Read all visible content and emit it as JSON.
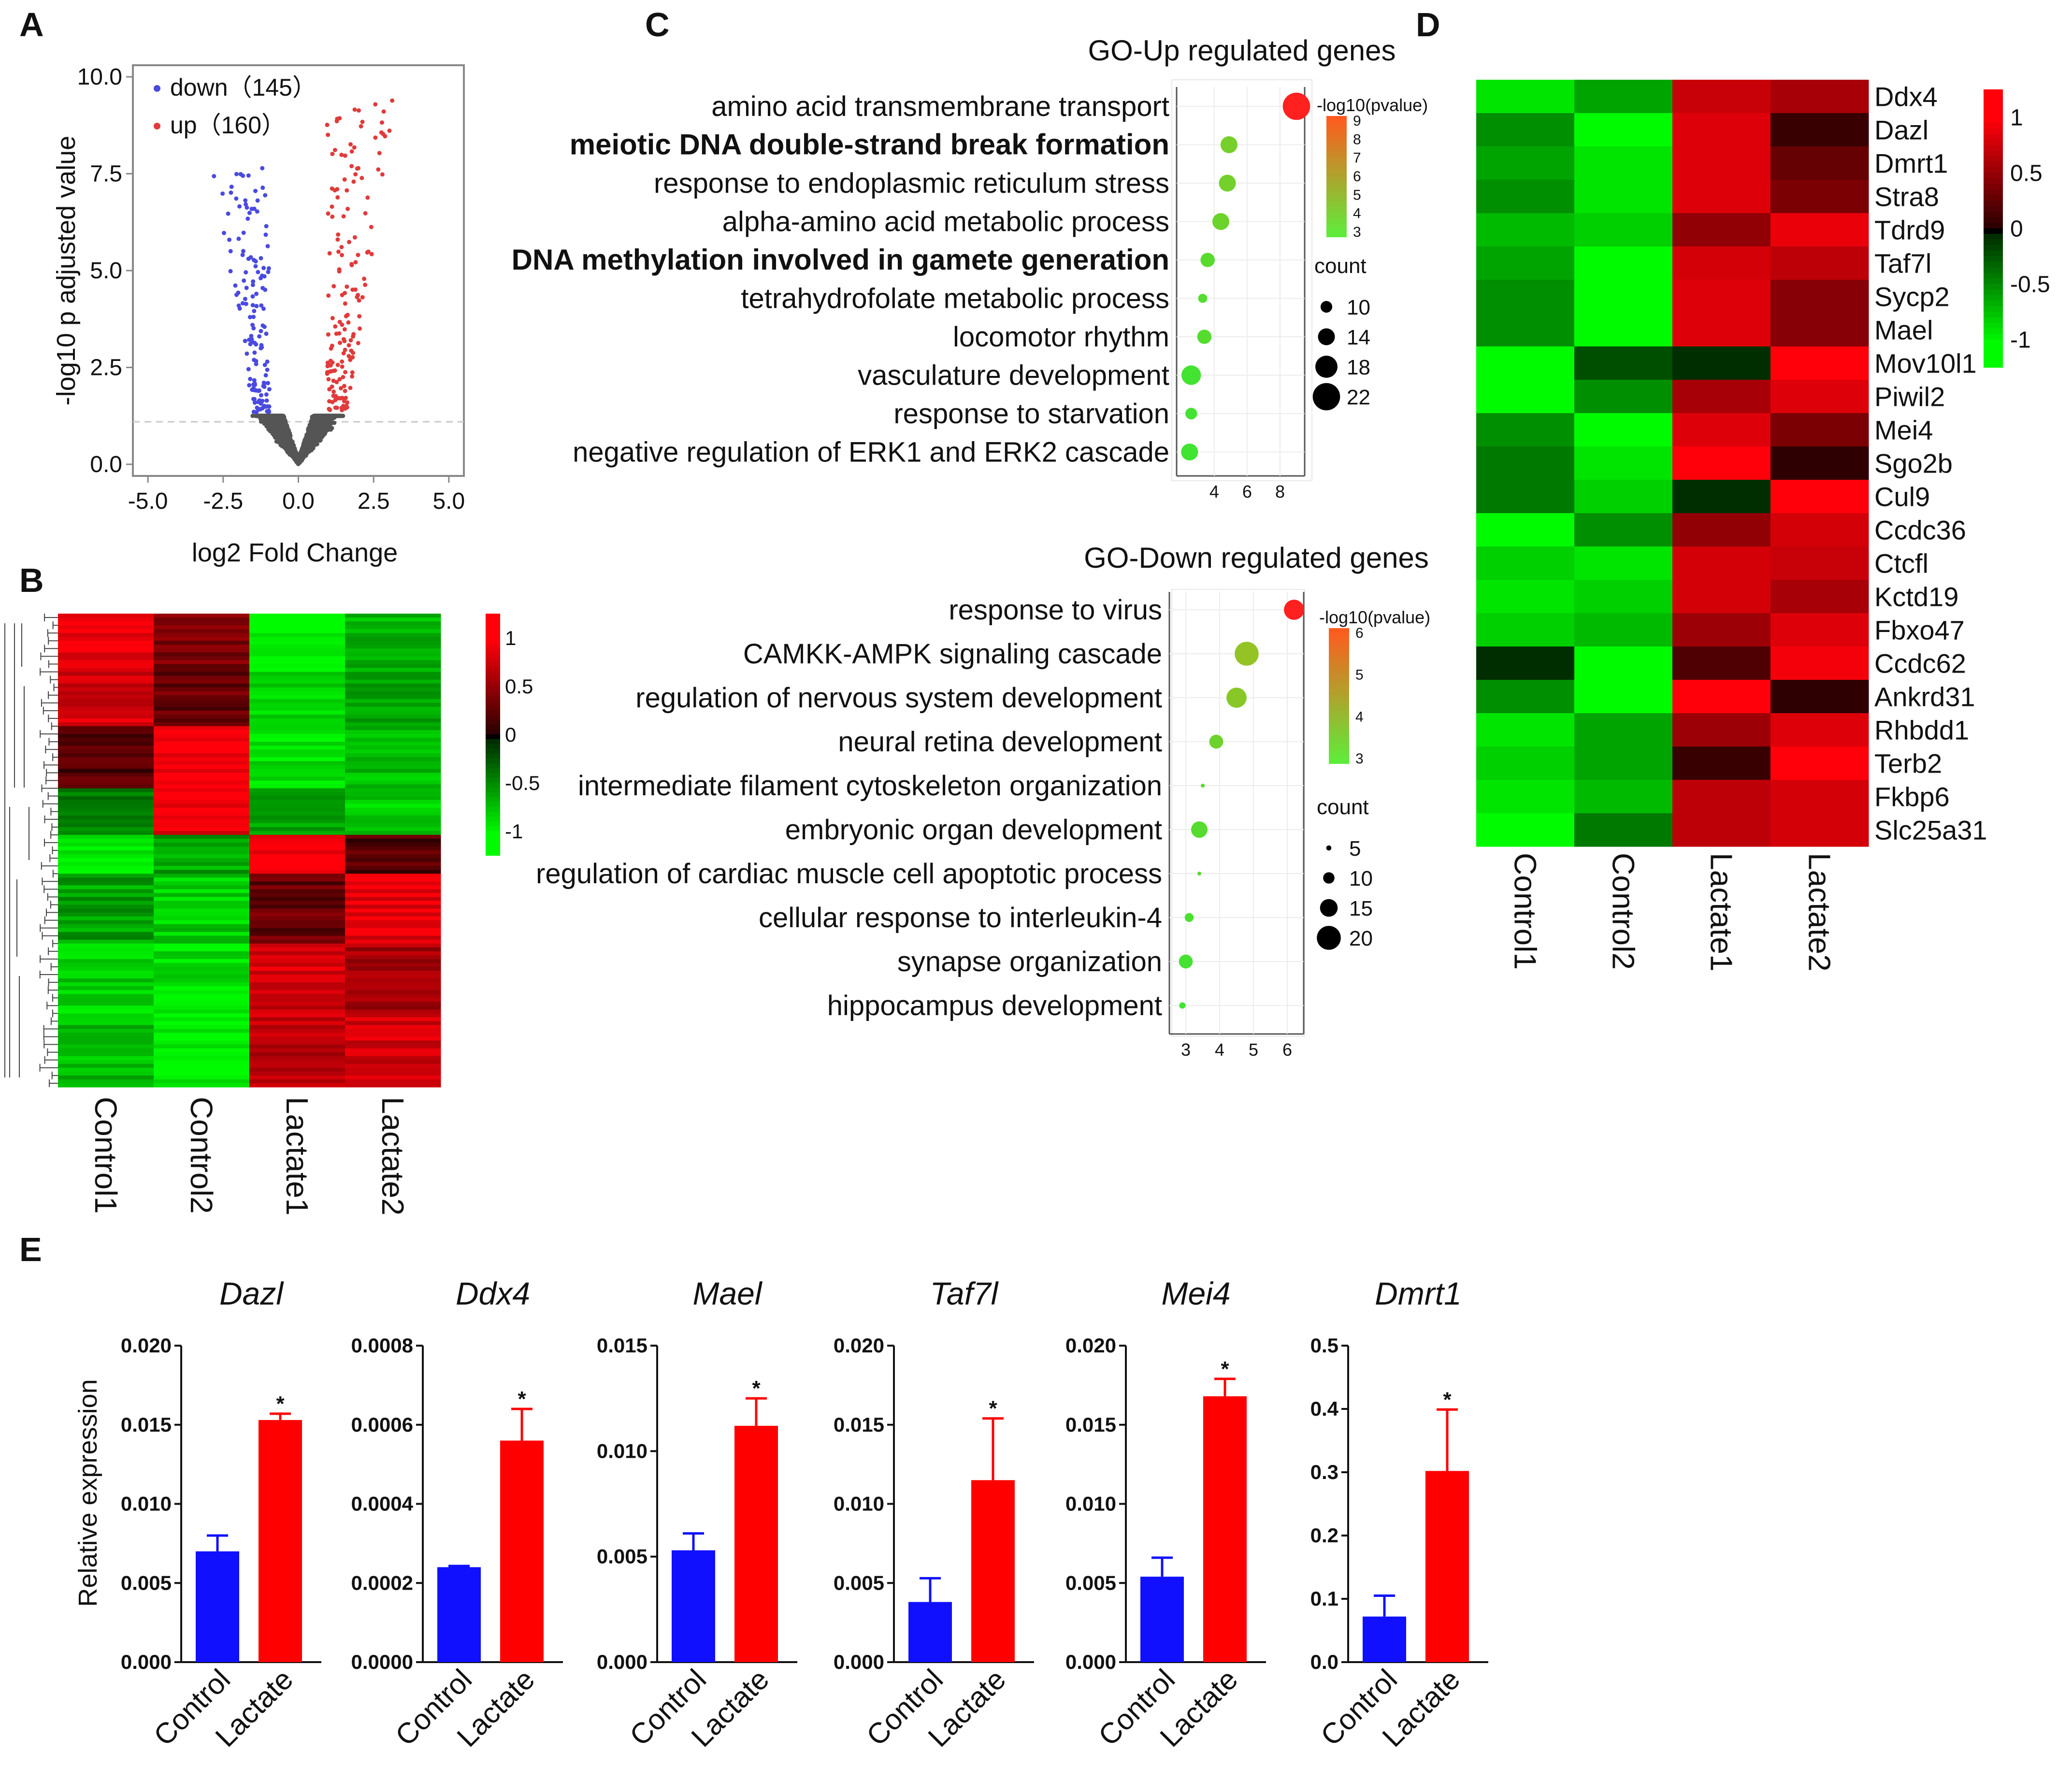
{
  "panel_labels": {
    "a": "A",
    "b": "B",
    "c": "C",
    "d": "D",
    "e": "E"
  },
  "colors": {
    "down": "#4a4ae0",
    "up": "#e03b3b",
    "ns": "#555555",
    "control_bar": "#1010ff",
    "lactate_bar": "#ff0000",
    "heat_low": "#00ee00",
    "heat_mid": "#000000",
    "heat_high": "#ff1010"
  },
  "chart_data": [
    {
      "id": "A",
      "type": "scatter",
      "title": "",
      "xlabel": "log2 Fold Change",
      "ylabel": "-log10 p adjusted value",
      "xlim": [
        -5.5,
        5.5
      ],
      "ylim": [
        -0.3,
        10.3
      ],
      "xticks": [
        -5.0,
        -2.5,
        0.0,
        2.5,
        5.0
      ],
      "xtick_labels": [
        "-5.0",
        "-2.5",
        "0.0",
        "2.5",
        "5.0"
      ],
      "yticks": [
        0.0,
        2.5,
        5.0,
        7.5,
        10.0
      ],
      "ytick_labels": [
        "0.0",
        "2.5",
        "5.0",
        "7.5",
        "10.0"
      ],
      "threshold_y": 1.3,
      "threshold_x": [
        -1,
        1
      ],
      "legend": [
        {
          "label": "down（145）",
          "count": 145
        },
        {
          "label": "up（160）",
          "count": 160
        }
      ]
    },
    {
      "id": "B",
      "type": "heatmap",
      "columns": [
        "Control1",
        "Control2",
        "Lactate1",
        "Lactate2"
      ],
      "row_count": 305,
      "color_scale": {
        "ticks": [
          1,
          0.5,
          0,
          -0.5,
          -1
        ],
        "labels": [
          "1",
          "0.5",
          "0",
          "-0.5",
          "-1"
        ]
      },
      "blocks": [
        {
          "fraction": 0.12,
          "values": [
            0.9,
            0.4,
            -1.0,
            -0.7
          ]
        },
        {
          "fraction": 0.12,
          "values": [
            0.8,
            0.3,
            -0.8,
            -0.6
          ]
        },
        {
          "fraction": 0.13,
          "values": [
            0.2,
            1.0,
            -0.9,
            -0.7
          ]
        },
        {
          "fraction": 0.1,
          "values": [
            -0.4,
            0.9,
            -0.6,
            -0.8
          ]
        },
        {
          "fraction": 0.08,
          "values": [
            -1.0,
            -0.6,
            1.0,
            0.2
          ]
        },
        {
          "fraction": 0.15,
          "values": [
            -0.6,
            -0.8,
            0.3,
            0.9
          ]
        },
        {
          "fraction": 0.15,
          "values": [
            -0.8,
            -0.9,
            0.8,
            0.6
          ]
        },
        {
          "fraction": 0.15,
          "values": [
            -0.7,
            -1.0,
            0.7,
            0.8
          ]
        }
      ]
    },
    {
      "id": "C-up",
      "type": "scatter",
      "title": "GO-Up regulated genes",
      "categories": [
        "amino acid transmembrane transport",
        "meiotic DNA double-strand break formation",
        "response to endoplasmic reticulum stress",
        "alpha-amino acid metabolic process",
        "DNA methylation involved in gamete generation",
        "tetrahydrofolate metabolic process",
        "locomotor rhythm",
        "vasculature development",
        "response to starvation",
        "negative regulation of ERK1 and ERK2 cascade"
      ],
      "bold": [
        false,
        true,
        false,
        false,
        true,
        false,
        false,
        false,
        false,
        false
      ],
      "x": [
        9.0,
        4.9,
        4.8,
        4.4,
        3.6,
        3.3,
        3.4,
        2.6,
        2.6,
        2.5
      ],
      "counts": [
        22,
        14,
        14,
        14,
        12,
        8,
        12,
        16,
        10,
        14
      ],
      "xlim": [
        2.3,
        9.5
      ],
      "xticks": [
        4,
        6,
        8
      ],
      "xtick_labels": [
        "4",
        "6",
        "8"
      ],
      "color_legend_title": "-log10(pvalue)",
      "color_legend_ticks": [
        "9",
        "8",
        "7",
        "6",
        "5",
        "4",
        "3"
      ],
      "size_legend_title": "count",
      "size_legend": [
        10,
        14,
        18,
        22
      ]
    },
    {
      "id": "C-down",
      "type": "scatter",
      "title": "GO-Down regulated genes",
      "categories": [
        "response to virus",
        "CAMKK-AMPK signaling cascade",
        "regulation of nervous system development",
        "neural retina development",
        "intermediate filament cytoskeleton organization",
        "embryonic organ development",
        "regulation of cardiac muscle cell apoptotic process",
        "cellular response to interleukin-4",
        "synapse organization",
        "hippocampus development"
      ],
      "bold": [
        false,
        false,
        false,
        false,
        false,
        false,
        false,
        false,
        false,
        false
      ],
      "x": [
        6.2,
        4.8,
        4.5,
        3.9,
        3.5,
        3.4,
        3.4,
        3.1,
        3.0,
        2.9
      ],
      "counts": [
        17,
        20,
        17,
        12,
        4,
        14,
        4,
        8,
        12,
        6
      ],
      "xlim": [
        2.8,
        6.3
      ],
      "xticks": [
        3,
        4,
        5,
        6
      ],
      "xtick_labels": [
        "3",
        "4",
        "5",
        "6"
      ],
      "color_legend_title": "-log10(pvalue)",
      "color_legend_ticks": [
        "6",
        "5",
        "4",
        "3"
      ],
      "size_legend_title": "count",
      "size_legend": [
        5,
        10,
        15,
        20
      ]
    },
    {
      "id": "D",
      "type": "heatmap",
      "columns": [
        "Control1",
        "Control2",
        "Lactate1",
        "Lactate2"
      ],
      "rows": [
        "Ddx4",
        "Dazl",
        "Dmrt1",
        "Stra8",
        "Tdrd9",
        "Taf7l",
        "Sycp2",
        "Mael",
        "Mov10l1",
        "Piwil2",
        "Mei4",
        "Sgo2b",
        "Cul9",
        "Ccdc36",
        "Ctcfl",
        "Kctd19",
        "Fbxo47",
        "Ccdc62",
        "Ankrd31",
        "Rhbdd1",
        "Terb2",
        "Fkbp6",
        "Slc25a31"
      ],
      "values": [
        [
          -0.9,
          -0.6,
          0.75,
          0.6
        ],
        [
          -0.5,
          -1.0,
          0.85,
          0.1
        ],
        [
          -0.6,
          -0.9,
          0.85,
          0.3
        ],
        [
          -0.5,
          -0.9,
          0.85,
          0.4
        ],
        [
          -0.7,
          -0.8,
          0.5,
          0.9
        ],
        [
          -0.6,
          -1.0,
          0.8,
          0.7
        ],
        [
          -0.5,
          -1.0,
          0.85,
          0.45
        ],
        [
          -0.5,
          -1.0,
          0.85,
          0.45
        ],
        [
          -1.0,
          -0.2,
          -0.05,
          1.0
        ],
        [
          -1.0,
          -0.5,
          0.6,
          0.85
        ],
        [
          -0.5,
          -1.0,
          0.85,
          0.4
        ],
        [
          -0.4,
          -0.9,
          1.0,
          0.05
        ],
        [
          -0.4,
          -0.8,
          -0.05,
          1.0
        ],
        [
          -1.0,
          -0.5,
          0.5,
          0.8
        ],
        [
          -0.8,
          -0.9,
          0.8,
          0.75
        ],
        [
          -0.9,
          -0.8,
          0.8,
          0.6
        ],
        [
          -0.8,
          -0.7,
          0.55,
          0.85
        ],
        [
          -0.05,
          -1.2,
          0.2,
          0.95
        ],
        [
          -0.5,
          -1.0,
          1.0,
          0.05
        ],
        [
          -0.9,
          -0.6,
          0.55,
          0.85
        ],
        [
          -0.8,
          -0.6,
          0.1,
          1.0
        ],
        [
          -0.9,
          -0.7,
          0.7,
          0.8
        ],
        [
          -1.0,
          -0.4,
          0.7,
          0.8
        ]
      ],
      "color_scale": {
        "ticks": [
          1,
          0.5,
          0,
          -0.5,
          -1
        ],
        "labels": [
          "1",
          "0.5",
          "0",
          "-0.5",
          "-1"
        ]
      }
    },
    {
      "id": "E",
      "type": "bar",
      "ylabel": "Relative expression",
      "categories": [
        "Control",
        "Lactate"
      ],
      "significance": "*",
      "subplots": [
        {
          "title": "Dazl",
          "values": [
            0.007,
            0.0153
          ],
          "errors": [
            0.001,
            0.0004
          ],
          "ylim": [
            0,
            0.02
          ],
          "yticks": [
            "0.000",
            "0.005",
            "0.010",
            "0.015",
            "0.020"
          ]
        },
        {
          "title": "Ddx4",
          "values": [
            0.00024,
            0.00056
          ],
          "errors": [
            3e-06,
            8e-05
          ],
          "ylim": [
            0,
            0.0008
          ],
          "yticks": [
            "0.0000",
            "0.0002",
            "0.0004",
            "0.0006",
            "0.0008"
          ]
        },
        {
          "title": "Mael",
          "values": [
            0.0053,
            0.0112
          ],
          "errors": [
            0.0008,
            0.0013
          ],
          "ylim": [
            0,
            0.015
          ],
          "yticks": [
            "0.000",
            "0.005",
            "0.010",
            "0.015"
          ]
        },
        {
          "title": "Taf7l",
          "values": [
            0.0038,
            0.0115
          ],
          "errors": [
            0.0015,
            0.0039
          ],
          "ylim": [
            0,
            0.02
          ],
          "yticks": [
            "0.000",
            "0.005",
            "0.010",
            "0.015",
            "0.020"
          ]
        },
        {
          "title": "Mei4",
          "values": [
            0.0054,
            0.0168
          ],
          "errors": [
            0.0012,
            0.0011
          ],
          "ylim": [
            0,
            0.02
          ],
          "yticks": [
            "0.000",
            "0.005",
            "0.010",
            "0.015",
            "0.020"
          ]
        },
        {
          "title": "Dmrt1",
          "values": [
            0.072,
            0.302
          ],
          "errors": [
            0.033,
            0.097
          ],
          "ylim": [
            0,
            0.5
          ],
          "yticks": [
            "0.0",
            "0.1",
            "0.2",
            "0.3",
            "0.4",
            "0.5"
          ]
        }
      ]
    }
  ]
}
